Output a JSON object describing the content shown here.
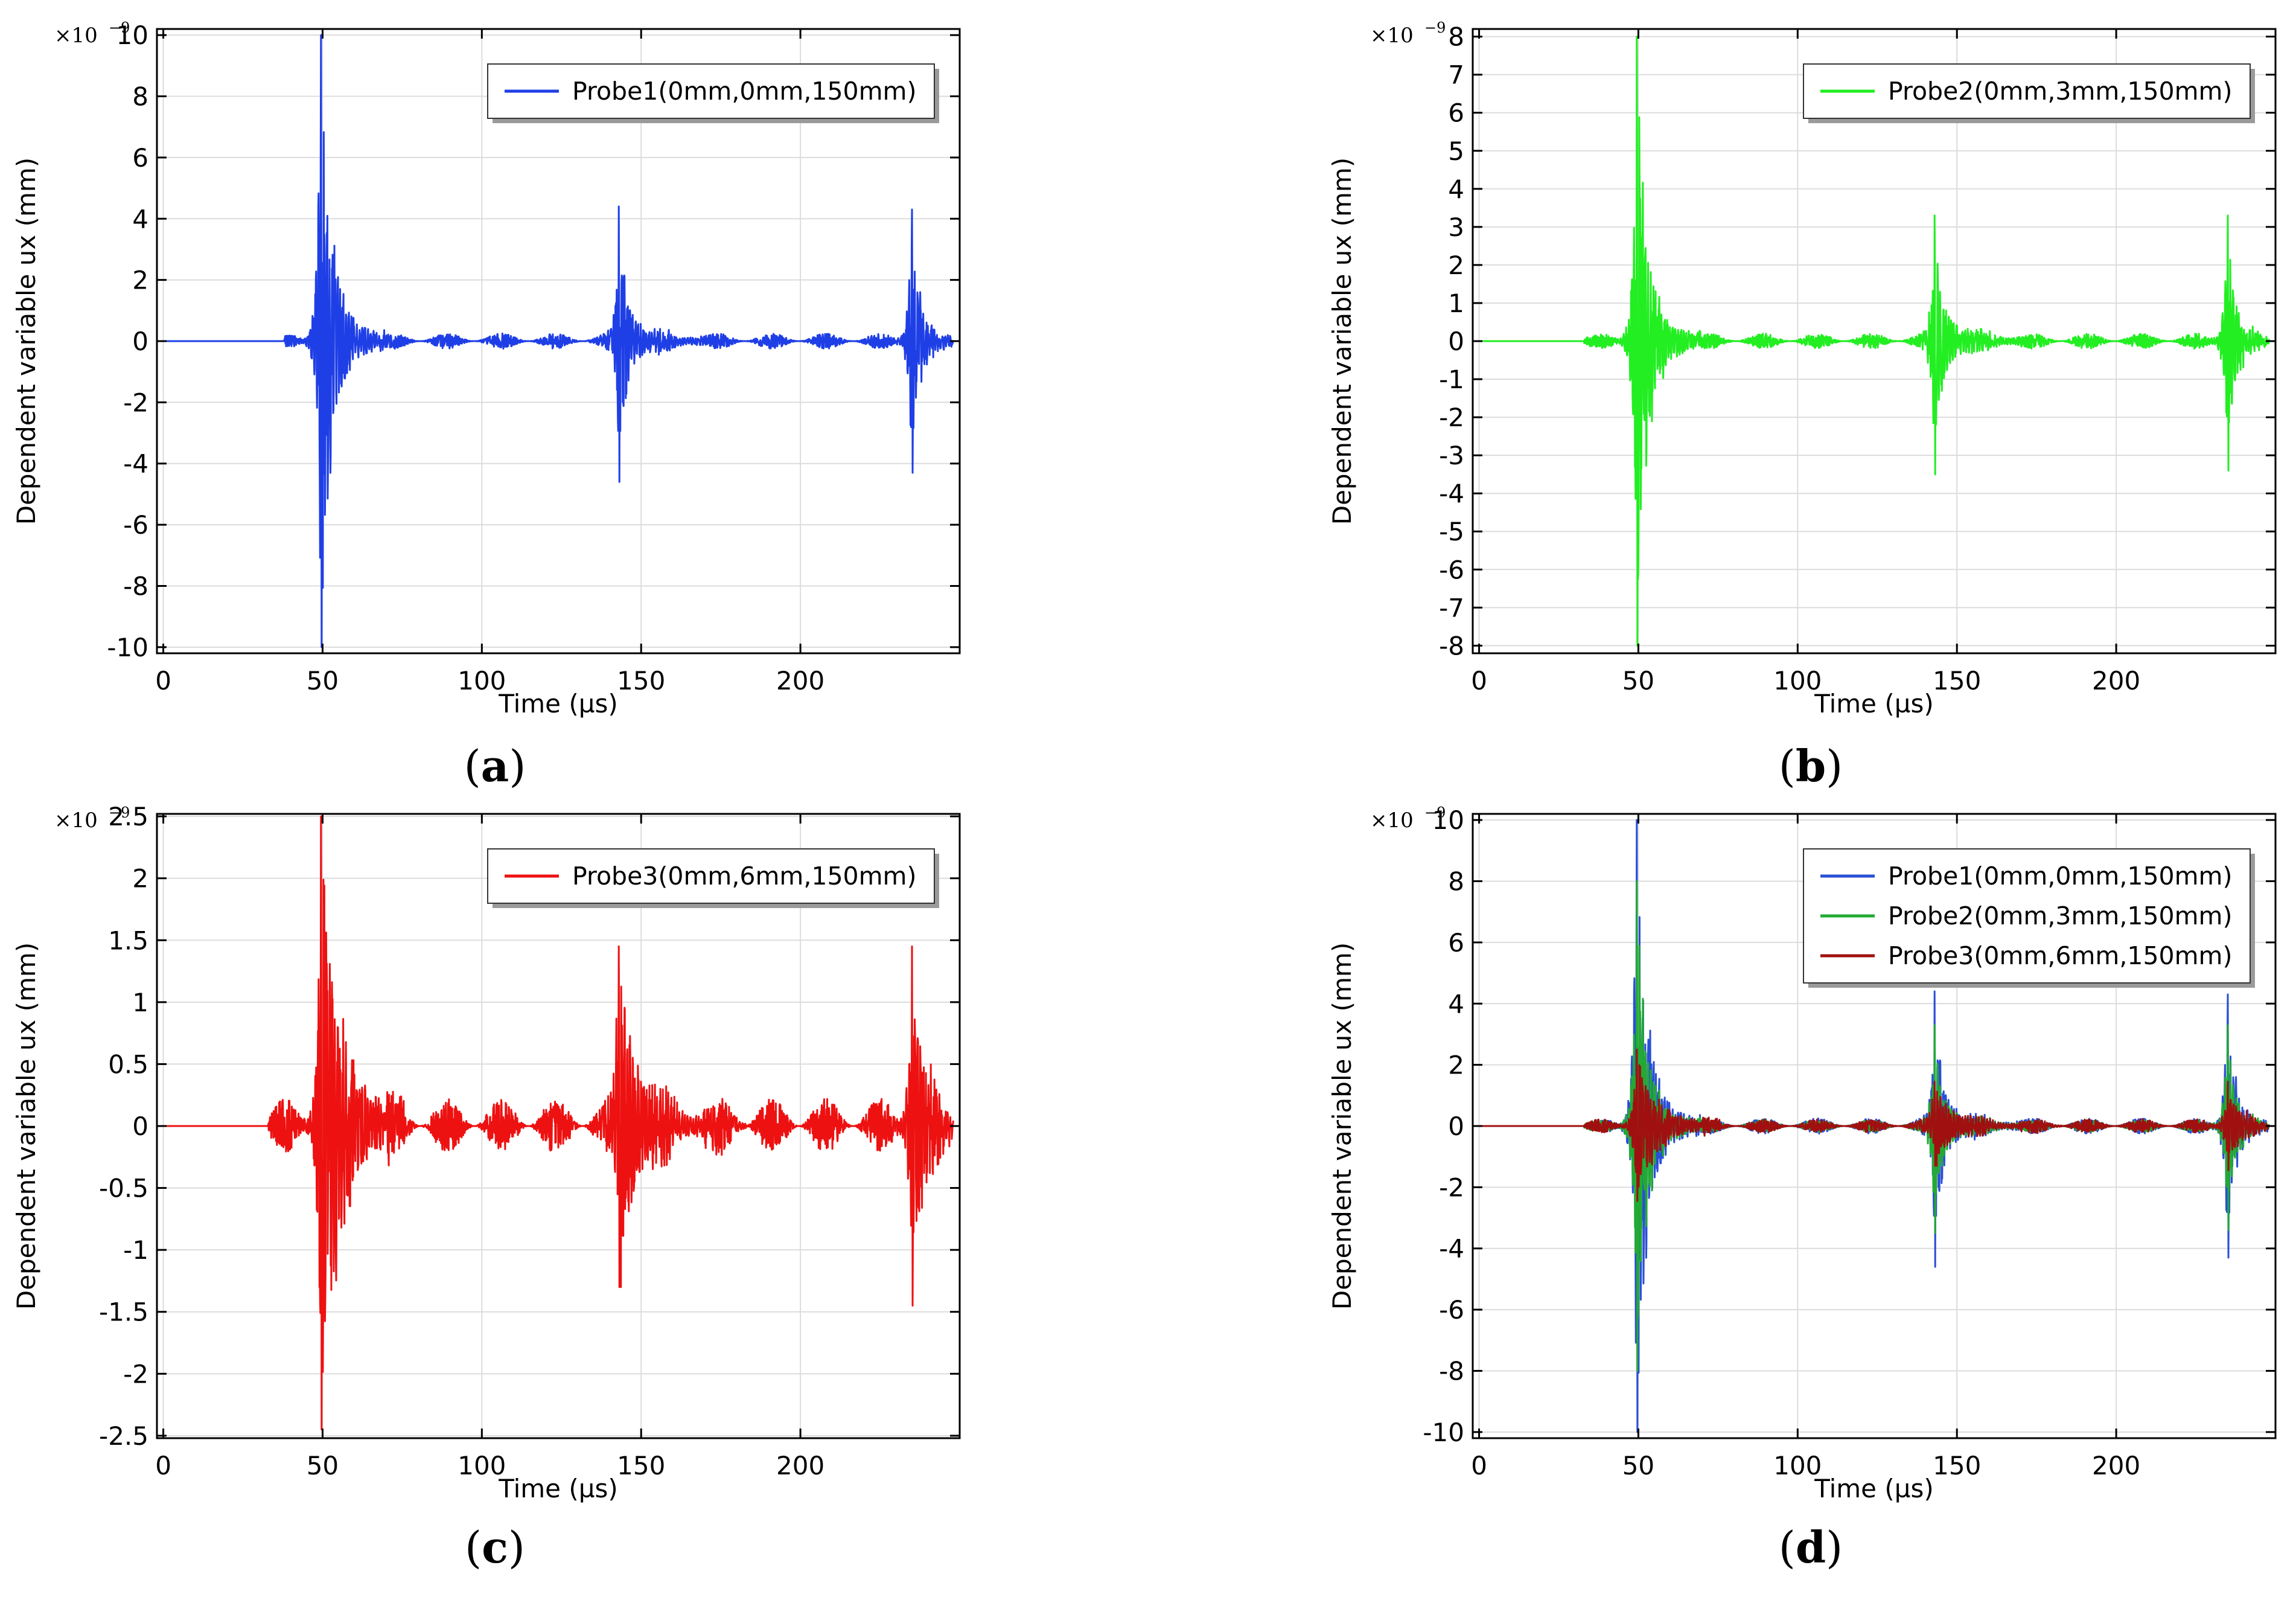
{
  "chart_data": [
    {
      "id": "a",
      "type": "line",
      "caption_letter": "a",
      "xlabel": "Time (µs)",
      "ylabel": "Dependent variable ux (mm)",
      "y_multiplier": "×10",
      "y_multiplier_exp": "−9",
      "xlim": [
        -2,
        250
      ],
      "ylim": [
        -10.2,
        10.2
      ],
      "xticks": [
        0,
        50,
        100,
        150,
        200
      ],
      "xtick_labels": [
        "0",
        "50",
        "100",
        "150",
        "200"
      ],
      "yticks": [
        -10,
        -8,
        -6,
        -4,
        -2,
        0,
        2,
        4,
        6,
        8,
        10
      ],
      "ytick_labels": [
        "-10",
        "-8",
        "-6",
        "-4",
        "-2",
        "0",
        "2",
        "4",
        "6",
        "8",
        "10"
      ],
      "legend_position": "top-right",
      "series": [
        {
          "name": "Probe1(0mm,0mm,150mm)",
          "color": "#1f3fe6",
          "seed": 11,
          "bursts": [
            {
              "t": 49.5,
              "amp": 10,
              "pos": 10,
              "neg": -10,
              "decay": 3.2,
              "width": 20
            },
            {
              "t": 143,
              "amp": 4.4,
              "pos": 4.4,
              "neg": -4.6,
              "decay": 2.2,
              "width": 28
            },
            {
              "t": 235,
              "amp": 4.3,
              "pos": 4.3,
              "neg": -4.3,
              "decay": 2.2,
              "width": 14
            }
          ],
          "noise": 0.25,
          "onset": 38
        }
      ]
    },
    {
      "id": "b",
      "type": "line",
      "caption_letter": "b",
      "xlabel": "Time (µs)",
      "ylabel": "Dependent variable ux (mm)",
      "y_multiplier": "×10",
      "y_multiplier_exp": "−9",
      "xlim": [
        -2,
        250
      ],
      "ylim": [
        -8.2,
        8.2
      ],
      "xticks": [
        0,
        50,
        100,
        150,
        200
      ],
      "xtick_labels": [
        "0",
        "50",
        "100",
        "150",
        "200"
      ],
      "yticks": [
        -8,
        -7,
        -6,
        -5,
        -4,
        -3,
        -2,
        -1,
        0,
        1,
        2,
        3,
        4,
        5,
        6,
        7,
        8
      ],
      "ytick_labels": [
        "-8",
        "-7",
        "-6",
        "-5",
        "-4",
        "-3",
        "-2",
        "-1",
        "0",
        "1",
        "2",
        "3",
        "4",
        "5",
        "6",
        "7",
        "8"
      ],
      "legend_position": "top-right",
      "series": [
        {
          "name": "Probe2(0mm,3mm,150mm)",
          "color": "#22ee22",
          "seed": 23,
          "bursts": [
            {
              "t": 49.5,
              "amp": 8,
              "pos": 8,
              "neg": -8,
              "decay": 3.0,
              "width": 20
            },
            {
              "t": 143,
              "amp": 3.3,
              "pos": 3.3,
              "neg": -3.5,
              "decay": 2.2,
              "width": 28
            },
            {
              "t": 235,
              "amp": 3.3,
              "pos": 3.3,
              "neg": -3.4,
              "decay": 2.2,
              "width": 14
            }
          ],
          "noise": 0.2,
          "onset": 33
        }
      ]
    },
    {
      "id": "c",
      "type": "line",
      "caption_letter": "c",
      "xlabel": "Time (µs)",
      "ylabel": "Dependent variable ux (mm)",
      "y_multiplier": "×10",
      "y_multiplier_exp": "−9",
      "xlim": [
        -2,
        250
      ],
      "ylim": [
        -2.52,
        2.52
      ],
      "xticks": [
        0,
        50,
        100,
        150,
        200
      ],
      "xtick_labels": [
        "0",
        "50",
        "100",
        "150",
        "200"
      ],
      "yticks": [
        -2.5,
        -2,
        -1.5,
        -1,
        -0.5,
        0,
        0.5,
        1,
        1.5,
        2,
        2.5
      ],
      "ytick_labels": [
        "-2.5",
        "-2",
        "-1.5",
        "-1",
        "-0.5",
        "0",
        "0.5",
        "1",
        "1.5",
        "2",
        "2.5"
      ],
      "legend_position": "top-right",
      "series": [
        {
          "name": "Probe3(0mm,6mm,150mm)",
          "color": "#ee1111",
          "seed": 37,
          "bursts": [
            {
              "t": 49.5,
              "amp": 2.5,
              "pos": 2.5,
              "neg": -2.45,
              "decay": 6.0,
              "width": 26
            },
            {
              "t": 143,
              "amp": 1.45,
              "pos": 1.45,
              "neg": -1.3,
              "decay": 5.0,
              "width": 40
            },
            {
              "t": 235,
              "amp": 1.45,
              "pos": 1.45,
              "neg": -1.45,
              "decay": 3.5,
              "width": 14
            }
          ],
          "noise": 0.22,
          "onset": 33
        }
      ]
    },
    {
      "id": "d",
      "type": "line",
      "caption_letter": "d",
      "xlabel": "Time (µs)",
      "ylabel": "Dependent variable ux (mm)",
      "y_multiplier": "×10",
      "y_multiplier_exp": "−9",
      "xlim": [
        -2,
        250
      ],
      "ylim": [
        -10.2,
        10.2
      ],
      "xticks": [
        0,
        50,
        100,
        150,
        200
      ],
      "xtick_labels": [
        "0",
        "50",
        "100",
        "150",
        "200"
      ],
      "yticks": [
        -10,
        -8,
        -6,
        -4,
        -2,
        0,
        2,
        4,
        6,
        8,
        10
      ],
      "ytick_labels": [
        "-10",
        "-8",
        "-6",
        "-4",
        "-2",
        "0",
        "2",
        "4",
        "6",
        "8",
        "10"
      ],
      "legend_position": "top-right",
      "series": [
        {
          "name": "Probe1(0mm,0mm,150mm)",
          "color": "#2a4fd6",
          "seed": 11,
          "bursts": [
            {
              "t": 49.5,
              "amp": 10,
              "pos": 10,
              "neg": -10,
              "decay": 3.2,
              "width": 20
            },
            {
              "t": 143,
              "amp": 4.4,
              "pos": 4.4,
              "neg": -4.6,
              "decay": 2.2,
              "width": 28
            },
            {
              "t": 235,
              "amp": 4.3,
              "pos": 4.3,
              "neg": -4.3,
              "decay": 2.2,
              "width": 14
            }
          ],
          "noise": 0.25,
          "onset": 38
        },
        {
          "name": "Probe2(0mm,3mm,150mm)",
          "color": "#22aa33",
          "seed": 23,
          "bursts": [
            {
              "t": 49.5,
              "amp": 8,
              "pos": 8,
              "neg": -8,
              "decay": 3.0,
              "width": 20
            },
            {
              "t": 143,
              "amp": 3.3,
              "pos": 3.3,
              "neg": -3.5,
              "decay": 2.2,
              "width": 28
            },
            {
              "t": 235,
              "amp": 3.3,
              "pos": 3.3,
              "neg": -3.4,
              "decay": 2.2,
              "width": 14
            }
          ],
          "noise": 0.2,
          "onset": 33
        },
        {
          "name": "Probe3(0mm,6mm,150mm)",
          "color": "#a01010",
          "seed": 37,
          "bursts": [
            {
              "t": 49.5,
              "amp": 2.5,
              "pos": 2.5,
              "neg": -2.45,
              "decay": 6.0,
              "width": 26
            },
            {
              "t": 143,
              "amp": 1.45,
              "pos": 1.45,
              "neg": -1.3,
              "decay": 5.0,
              "width": 40
            },
            {
              "t": 235,
              "amp": 1.45,
              "pos": 1.45,
              "neg": -1.45,
              "decay": 3.5,
              "width": 14
            }
          ],
          "noise": 0.22,
          "onset": 33
        }
      ]
    }
  ]
}
